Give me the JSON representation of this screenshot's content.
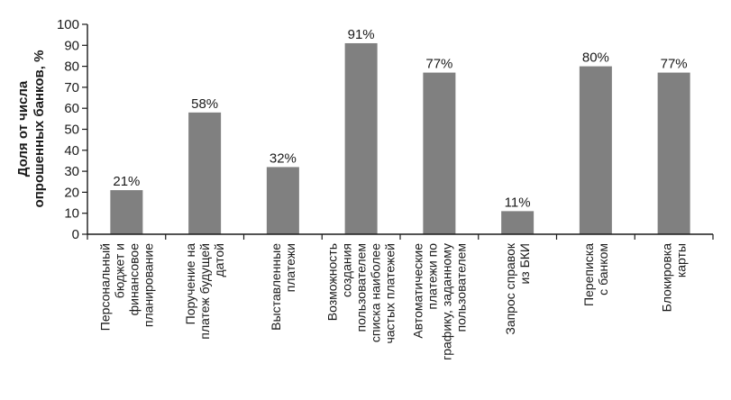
{
  "chart_data": {
    "type": "bar",
    "ylabel": [
      "Доля от числа",
      "опрошенных банков, %"
    ],
    "ylim": [
      0,
      100
    ],
    "yticks": [
      0,
      10,
      20,
      30,
      40,
      50,
      60,
      70,
      80,
      90,
      100
    ],
    "grid": false,
    "categories": [
      [
        "Персональный",
        "бюджет и",
        "финансовое",
        "планирование"
      ],
      [
        "Поручение на",
        "платеж будущей",
        "датой"
      ],
      [
        "Выставленные",
        "платежи"
      ],
      [
        "Возможность",
        "создания",
        "пользователем",
        "списка наиболее",
        "частых платежей"
      ],
      [
        "Автоматические",
        "платежи по",
        "графику, заданному",
        "пользователем"
      ],
      [
        "Запрос справок",
        "из БКИ"
      ],
      [
        "Переписка",
        "с банком"
      ],
      [
        "Блокировка",
        "карты"
      ]
    ],
    "values": [
      21,
      58,
      32,
      91,
      77,
      11,
      80,
      77
    ],
    "data_labels": [
      "21%",
      "58%",
      "32%",
      "91%",
      "77%",
      "11%",
      "80%",
      "77%"
    ],
    "bar_color": "#808080"
  }
}
